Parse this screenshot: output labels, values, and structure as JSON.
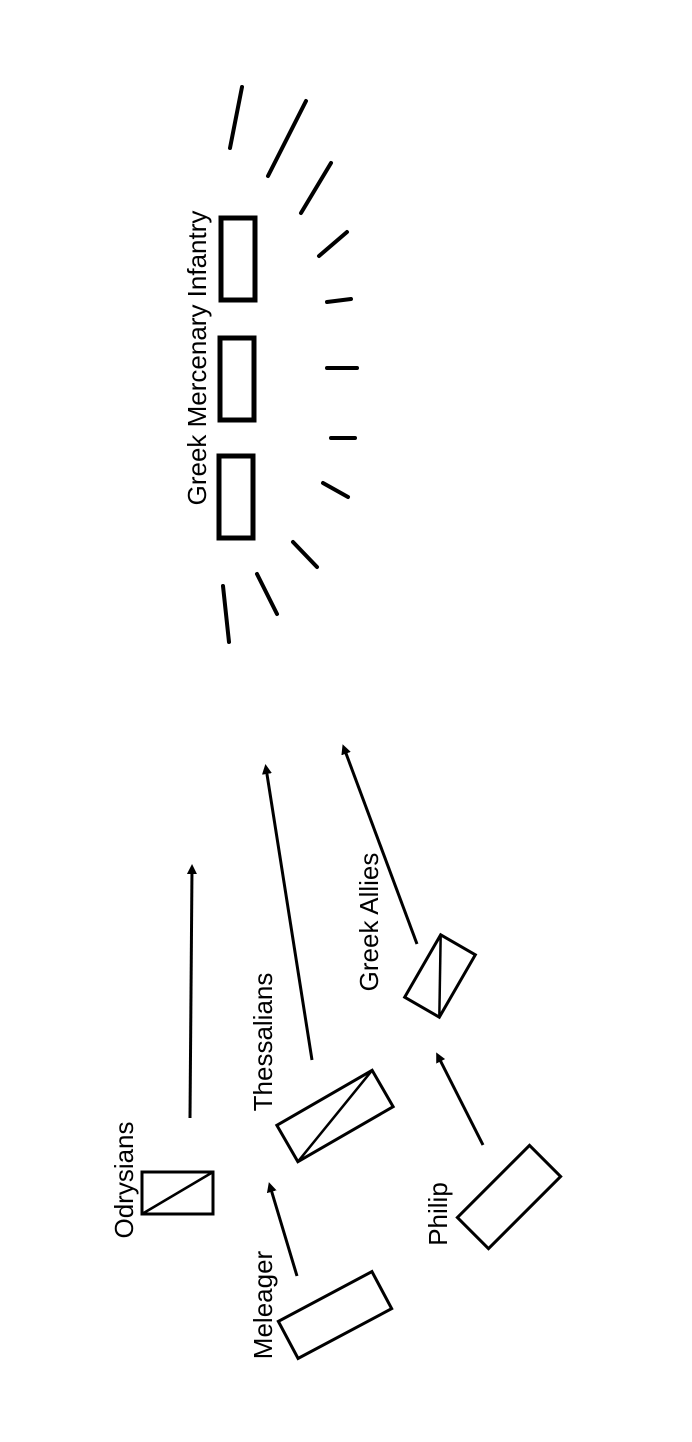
{
  "diagram": {
    "labels": {
      "greek_mercenary_infantry": "Greek Mercenary Infantry",
      "odrysians": "Odrysians",
      "thessalians": "Thessalians",
      "greek_allies": "Greek Allies",
      "meleager": "Meleager",
      "philip": "Philip"
    },
    "colors": {
      "ink": "#000000",
      "paper": "#ffffff"
    }
  }
}
